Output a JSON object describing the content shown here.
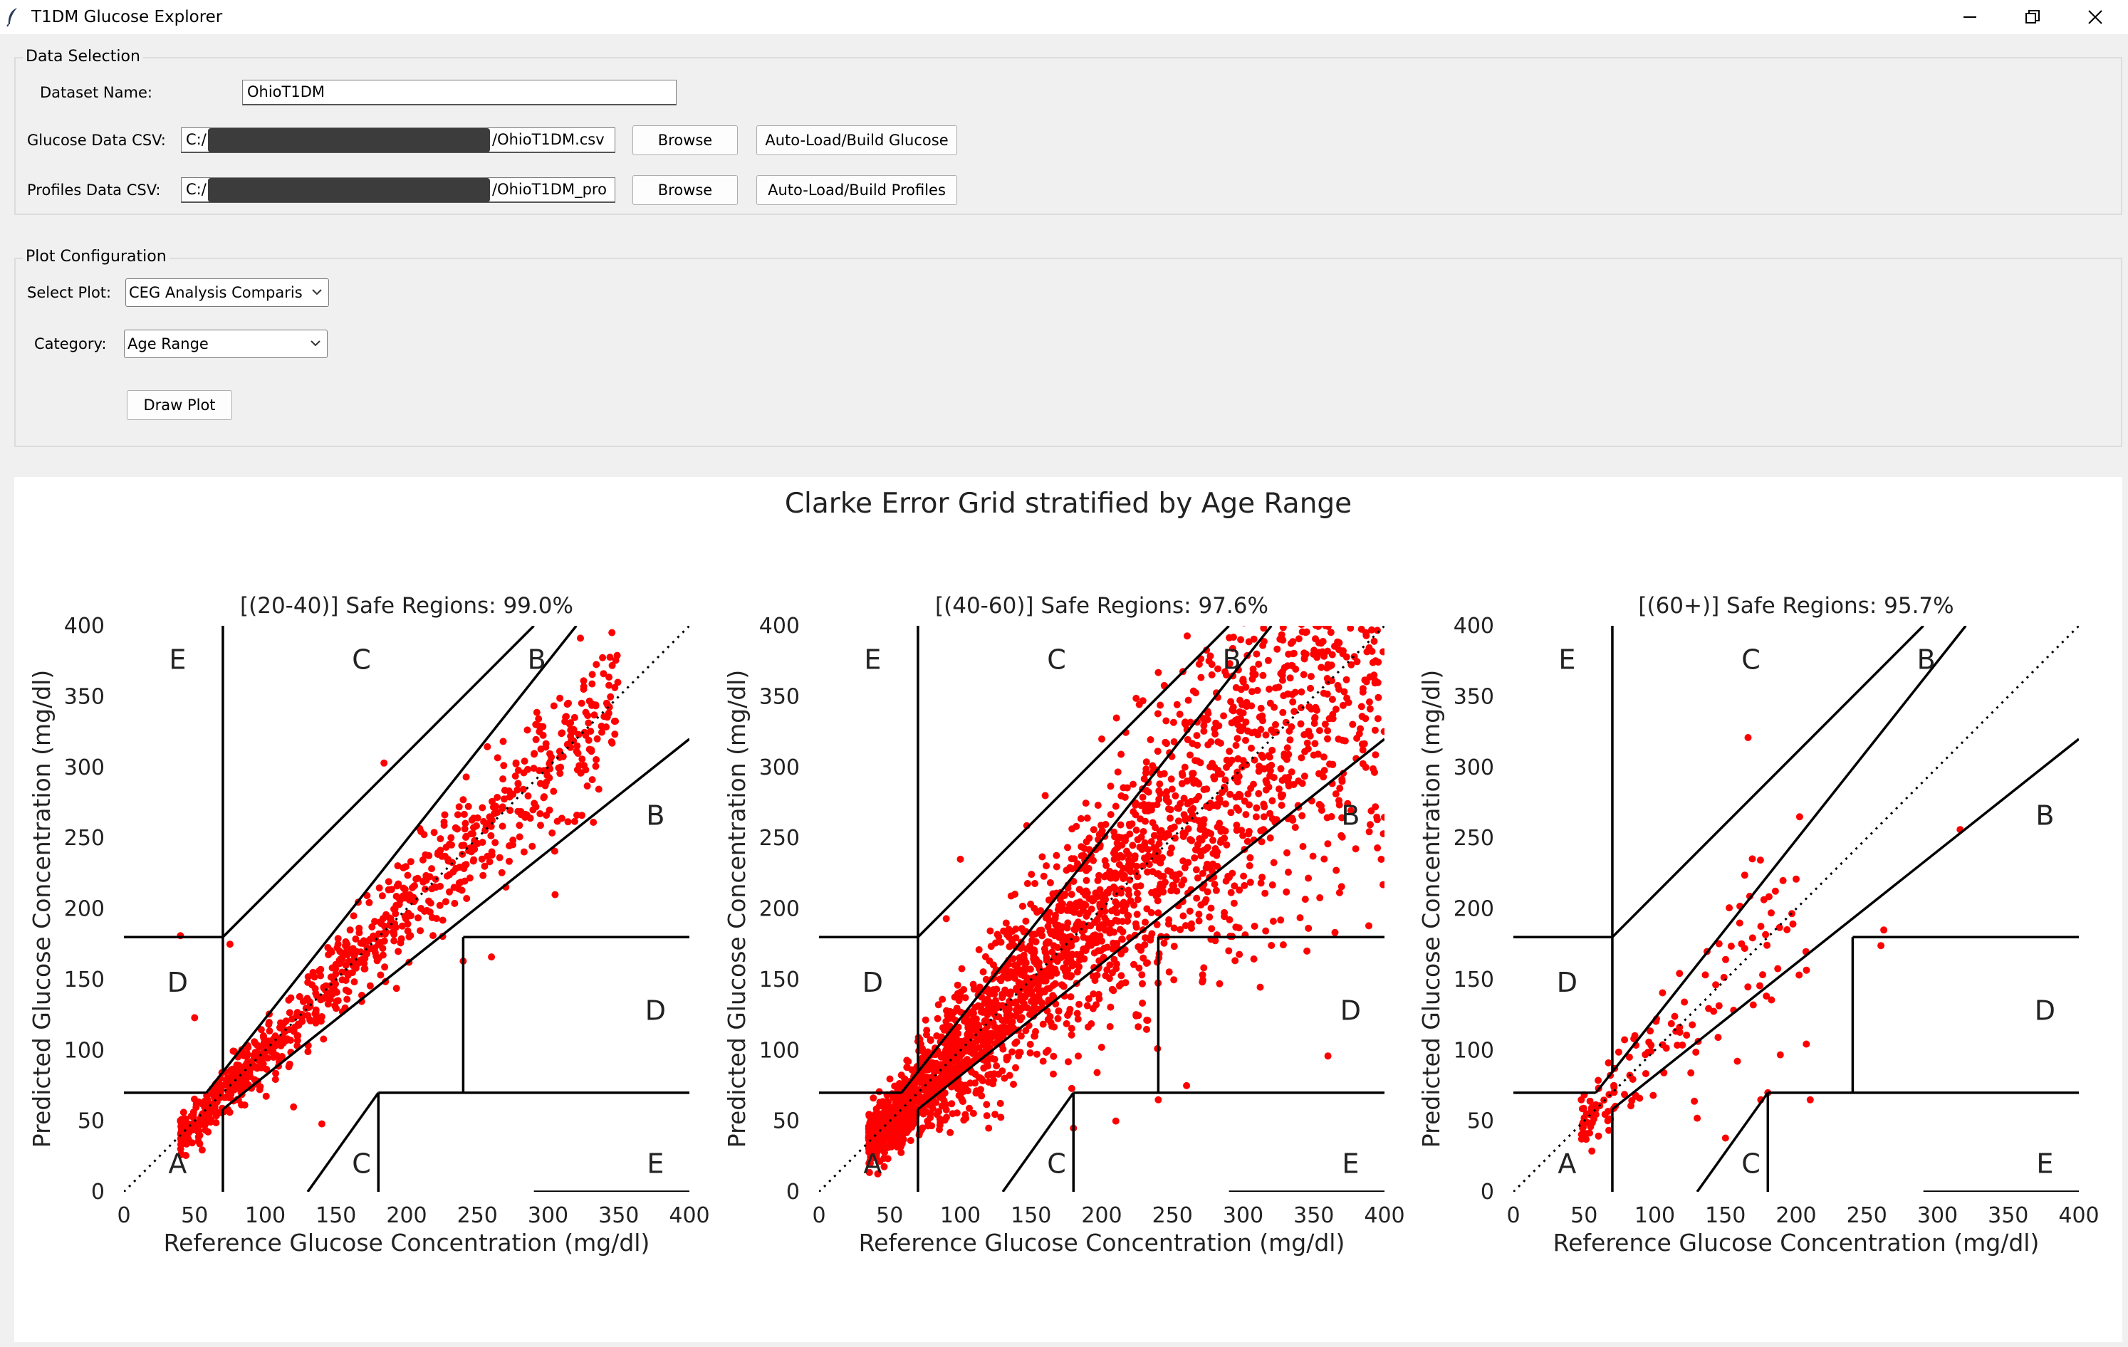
{
  "window": {
    "title": "T1DM Glucose Explorer",
    "icons": [
      "feather-icon",
      "minimize-icon",
      "restore-icon",
      "close-icon"
    ]
  },
  "data_selection": {
    "title": "Data Selection",
    "dataset_label": "Dataset Name:",
    "dataset_value": "OhioT1DM",
    "glucose_label": "Glucose Data CSV:",
    "glucose_path_prefix": "C:/",
    "glucose_path_suffix": "/OhioT1DM.csv",
    "profiles_label": "Profiles Data CSV:",
    "profiles_path_prefix": "C:/",
    "profiles_path_suffix": "/OhioT1DM_pro",
    "browse_label": "Browse",
    "autoload_glucose_label": "Auto-Load/Build Glucose",
    "autoload_profiles_label": "Auto-Load/Build Profiles"
  },
  "plot_config": {
    "title": "Plot Configuration",
    "select_plot_label": "Select Plot:",
    "select_plot_value": "CEG Analysis Comparis",
    "category_label": "Category:",
    "category_value": "Age Range",
    "draw_label": "Draw Plot"
  },
  "figure": {
    "suptitle": "Clarke Error Grid stratified by Age Range",
    "xlabel": "Reference Glucose Concentration (mg/dl)",
    "ylabel": "Predicted Glucose Concentration (mg/dl)"
  },
  "chart_data": [
    {
      "type": "scatter",
      "title": "[(20-40)] Safe Regions: 99.0%",
      "xlabel": "Reference Glucose Concentration (mg/dl)",
      "ylabel": "Predicted Glucose Concentration (mg/dl)",
      "xlim": [
        0,
        400
      ],
      "ylim": [
        0,
        400
      ],
      "xticks": [
        0,
        50,
        100,
        150,
        200,
        250,
        300,
        350,
        400
      ],
      "yticks": [
        0,
        50,
        100,
        150,
        200,
        250,
        300,
        350,
        400
      ],
      "zone_labels": [
        "A",
        "B",
        "B",
        "C",
        "C",
        "D",
        "D",
        "E",
        "E"
      ],
      "marker_color": "#ff0000",
      "points": {
        "count": 900,
        "ref_range": [
          40,
          350
        ],
        "spread": 0.08
      },
      "outliers": [
        [
          184,
          303
        ],
        [
          40,
          181
        ],
        [
          50,
          123
        ],
        [
          260,
          166
        ],
        [
          305,
          210
        ],
        [
          140,
          48
        ],
        [
          120,
          60
        ],
        [
          75,
          175
        ],
        [
          160,
          185
        ],
        [
          240,
          163
        ]
      ]
    },
    {
      "type": "scatter",
      "title": "[(40-60)] Safe Regions: 97.6%",
      "xlabel": "Reference Glucose Concentration (mg/dl)",
      "ylabel": "Predicted Glucose Concentration (mg/dl)",
      "xlim": [
        0,
        400
      ],
      "ylim": [
        0,
        400
      ],
      "xticks": [
        0,
        50,
        100,
        150,
        200,
        250,
        300,
        350,
        400
      ],
      "yticks": [
        0,
        50,
        100,
        150,
        200,
        250,
        300,
        350,
        400
      ],
      "zone_labels": [
        "A",
        "B",
        "B",
        "C",
        "C",
        "D",
        "D",
        "E",
        "E"
      ],
      "marker_color": "#ff0000",
      "points": {
        "count": 2600,
        "ref_range": [
          35,
          400
        ],
        "spread": 0.2
      },
      "outliers": [
        [
          240,
          367
        ],
        [
          200,
          320
        ],
        [
          90,
          193
        ],
        [
          360,
          96
        ],
        [
          395,
          243
        ],
        [
          370,
          290
        ],
        [
          240,
          65
        ],
        [
          260,
          75
        ],
        [
          180,
          45
        ],
        [
          210,
          50
        ],
        [
          120,
          45
        ],
        [
          100,
          235
        ],
        [
          160,
          280
        ]
      ]
    },
    {
      "type": "scatter",
      "title": "[(60+)] Safe Regions: 95.7%",
      "xlabel": "Reference Glucose Concentration (mg/dl)",
      "ylabel": "Predicted Glucose Concentration (mg/dl)",
      "xlim": [
        0,
        400
      ],
      "ylim": [
        0,
        400
      ],
      "xticks": [
        0,
        50,
        100,
        150,
        200,
        250,
        300,
        350,
        400
      ],
      "yticks": [
        0,
        50,
        100,
        150,
        200,
        250,
        300,
        350,
        400
      ],
      "zone_labels": [
        "A",
        "B",
        "B",
        "C",
        "C",
        "D",
        "D",
        "E",
        "E"
      ],
      "marker_color": "#ff0000",
      "points": {
        "count": 140,
        "ref_range": [
          48,
          210
        ],
        "spread": 0.18
      },
      "outliers": [
        [
          166,
          321
        ],
        [
          316,
          256
        ],
        [
          262,
          185
        ],
        [
          260,
          174
        ],
        [
          200,
          221
        ],
        [
          210,
          65
        ],
        [
          175,
          65
        ],
        [
          150,
          38
        ],
        [
          180,
          70
        ],
        [
          130,
          52
        ],
        [
          128,
          64
        ],
        [
          48,
          65
        ]
      ]
    }
  ]
}
